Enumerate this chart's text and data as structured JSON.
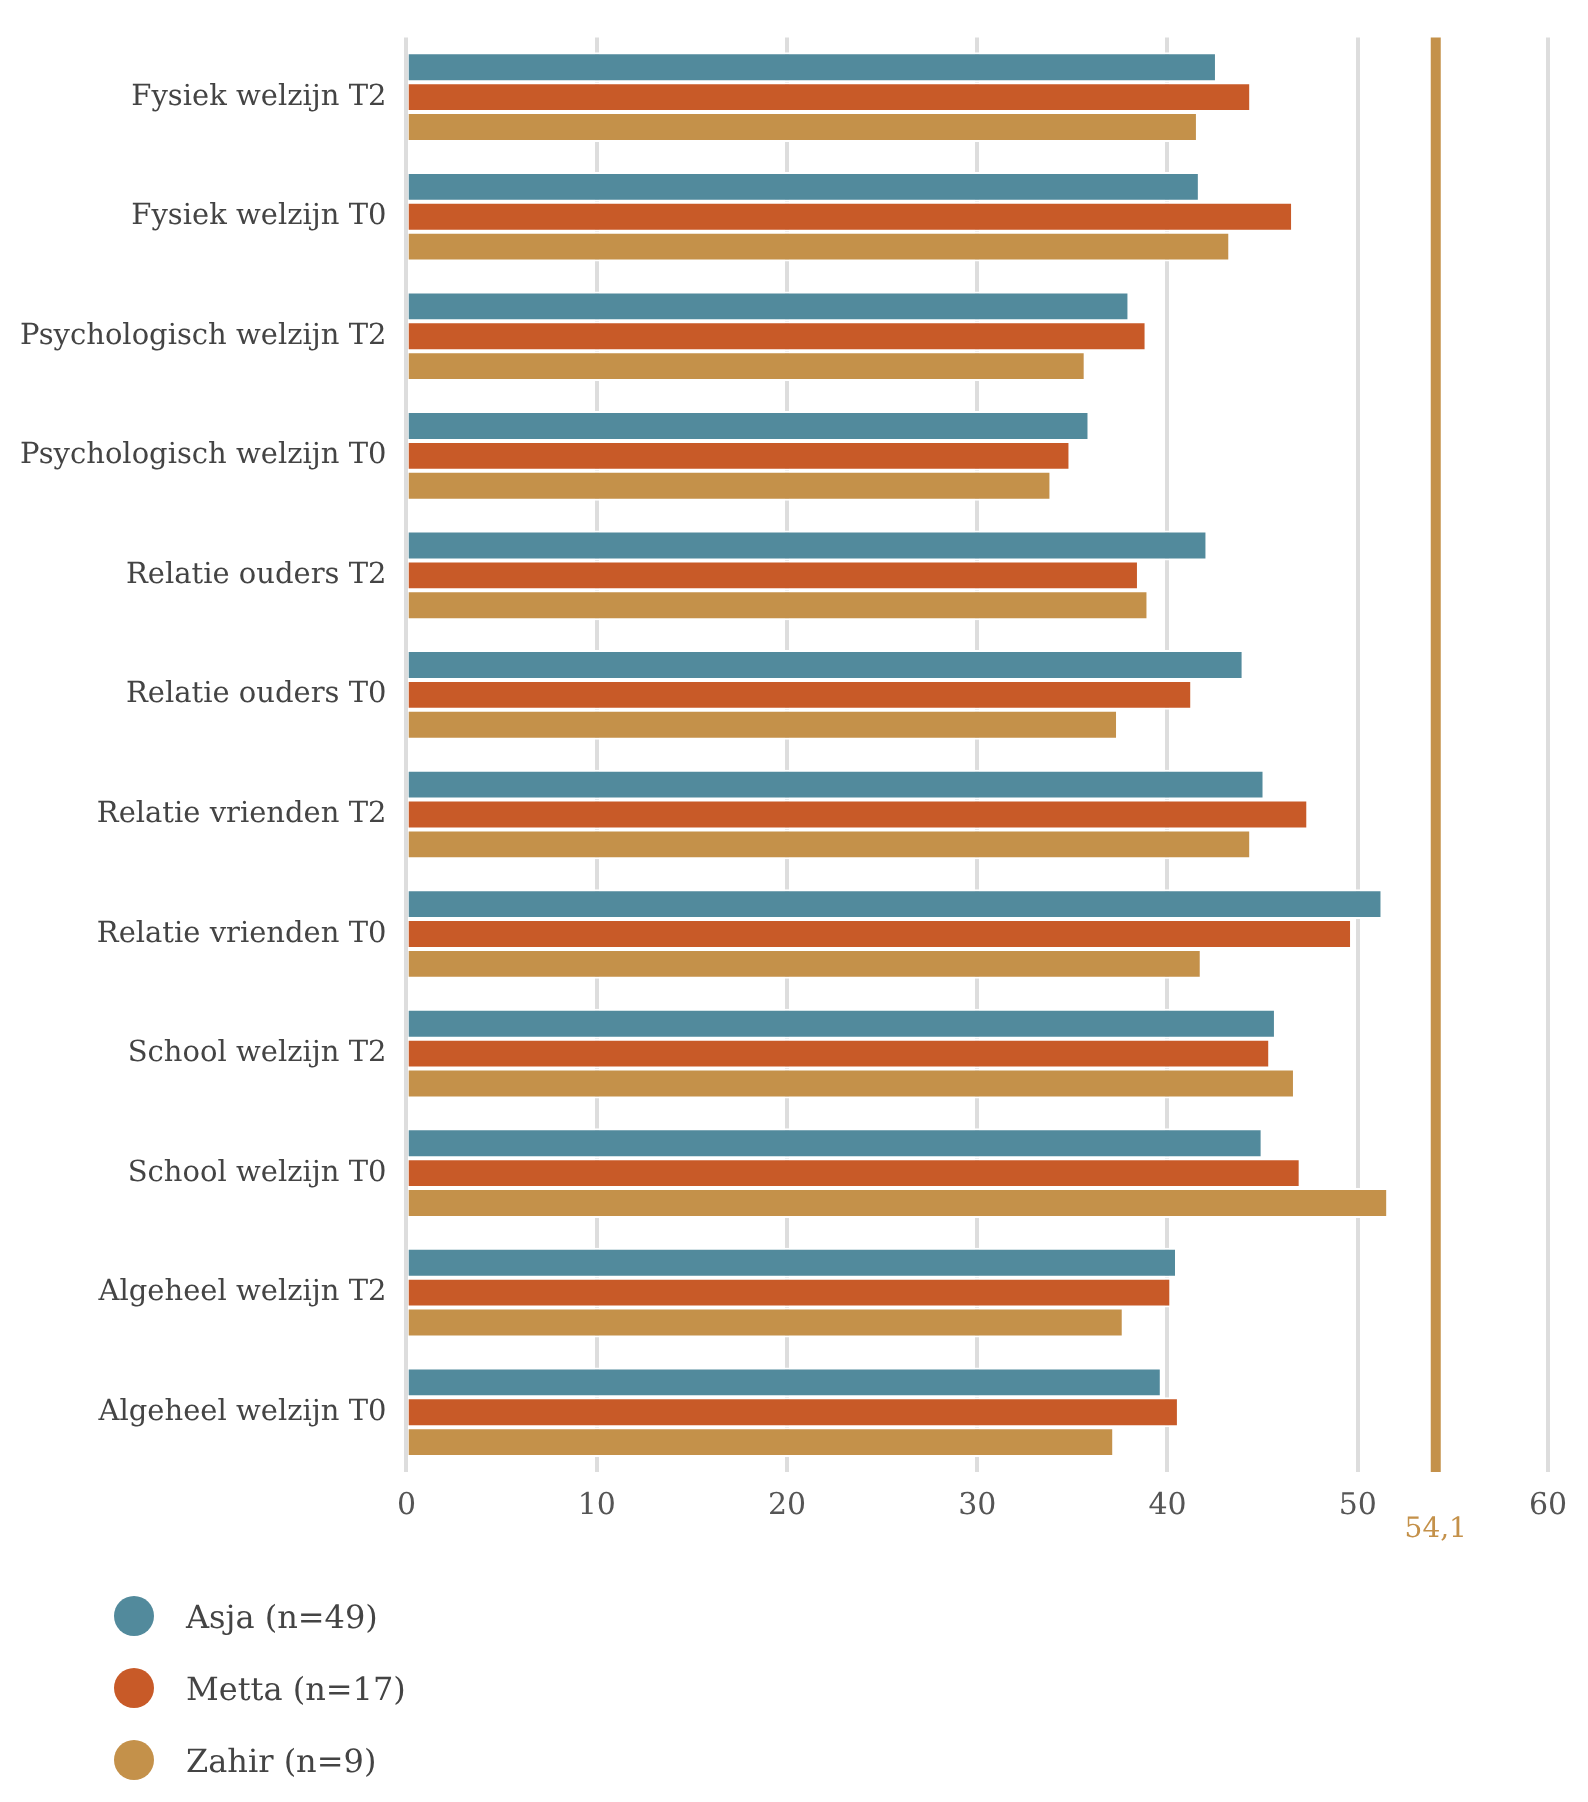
{
  "chart_data": {
    "type": "bar",
    "orientation": "horizontal",
    "categories": [
      "Fysiek welzijn T2",
      "Fysiek welzijn T0",
      "Psychologisch welzijn T2",
      "Psychologisch welzijn T0",
      "Relatie ouders T2",
      "Relatie ouders T0",
      "Relatie vrienden T2",
      "Relatie vrienden T0",
      "School welzijn T2",
      "School welzijn T0",
      "Algeheel welzijn T2",
      "Algeheel welzijn T0"
    ],
    "series": [
      {
        "name": "Asja (n=49)",
        "color": "#528a9c",
        "values": [
          42.6,
          41.7,
          38.0,
          35.9,
          42.1,
          44.0,
          45.1,
          51.3,
          45.7,
          45.0,
          40.5,
          39.7
        ]
      },
      {
        "name": "Metta (n=17)",
        "color": "#c85a28",
        "values": [
          44.4,
          46.6,
          38.9,
          34.9,
          38.5,
          41.3,
          47.4,
          49.7,
          45.4,
          47.0,
          40.2,
          40.6
        ]
      },
      {
        "name": "Zahir (n=9)",
        "color": "#c4914a",
        "values": [
          41.6,
          43.3,
          35.7,
          33.9,
          39.0,
          37.4,
          44.4,
          41.8,
          46.7,
          51.6,
          37.7,
          37.2
        ]
      }
    ],
    "xlim": [
      0,
      60
    ],
    "xticks": [
      0,
      10,
      20,
      30,
      40,
      50,
      60
    ],
    "grid": "x",
    "legend": "bottom",
    "ref_lines": [
      {
        "axis": "x",
        "value": 54.1,
        "label": "54,1",
        "color": "#c4914a"
      }
    ]
  }
}
